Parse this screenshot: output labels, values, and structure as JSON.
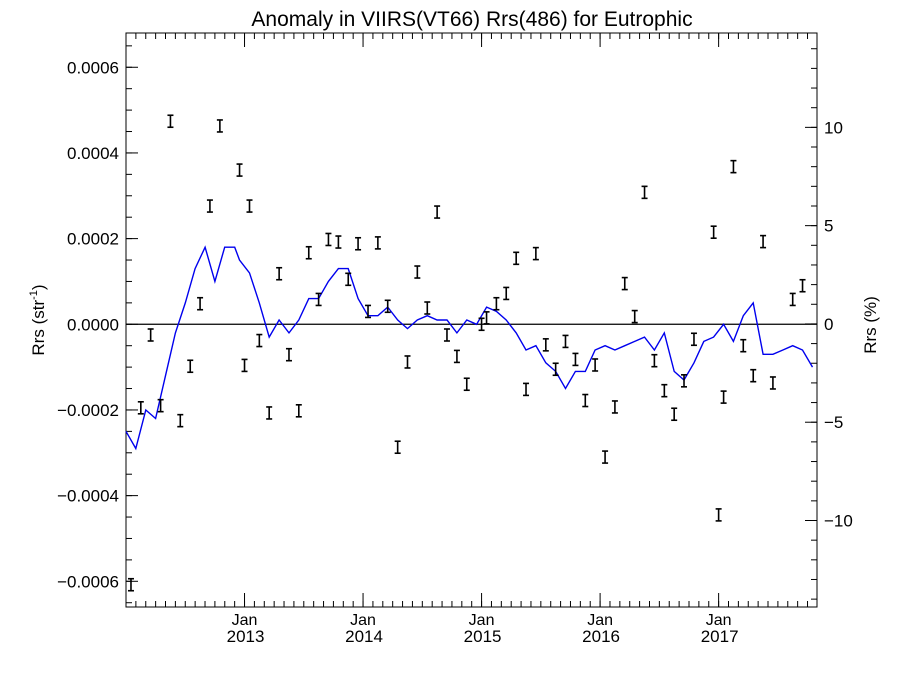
{
  "chart_data": {
    "type": "scatter",
    "title": "Anomaly in VIIRS(VT66) Rrs(486) for Eutrophic",
    "ylabel_left": "Rrs (str",
    "ylabel_left_sup": "-1",
    "ylabel_left_close": ")",
    "ylabel_right": "Rrs (%)",
    "xlim": [
      2012.0,
      2017.83
    ],
    "ylim_left": [
      -0.00066,
      0.00068
    ],
    "ylim_right_percent": [
      -14.4,
      14.8
    ],
    "y_ticks_left": [
      {
        "value": 0.0006,
        "label": "0.0006"
      },
      {
        "value": 0.0004,
        "label": "0.0004"
      },
      {
        "value": 0.0002,
        "label": "0.0002"
      },
      {
        "value": 0.0,
        "label": "0.0000"
      },
      {
        "value": -0.0002,
        "label": "−0.0002"
      },
      {
        "value": -0.0004,
        "label": "−0.0004"
      },
      {
        "value": -0.0006,
        "label": "−0.0006"
      }
    ],
    "y_ticks_right": [
      {
        "value": 10,
        "label": "10"
      },
      {
        "value": 5,
        "label": "5"
      },
      {
        "value": 0,
        "label": "0"
      },
      {
        "value": -5,
        "label": "−5"
      },
      {
        "value": -10,
        "label": "−10"
      }
    ],
    "x_ticks": [
      {
        "value": 2013.0,
        "month": "Jan",
        "year": "2013"
      },
      {
        "value": 2014.0,
        "month": "Jan",
        "year": "2014"
      },
      {
        "value": 2015.0,
        "month": "Jan",
        "year": "2015"
      },
      {
        "value": 2016.0,
        "month": "Jan",
        "year": "2016"
      },
      {
        "value": 2017.0,
        "month": "Jan",
        "year": "2017"
      }
    ],
    "zero_line": true,
    "grid": false,
    "points": [
      {
        "x": 2012.042,
        "y": -0.000608
      },
      {
        "x": 2012.125,
        "y": -0.000195
      },
      {
        "x": 2012.208,
        "y": -2.5e-05
      },
      {
        "x": 2012.292,
        "y": -0.00019
      },
      {
        "x": 2012.375,
        "y": 0.000474
      },
      {
        "x": 2012.458,
        "y": -0.000225
      },
      {
        "x": 2012.542,
        "y": -9.8e-05
      },
      {
        "x": 2012.625,
        "y": 4.8e-05
      },
      {
        "x": 2012.708,
        "y": 0.000276
      },
      {
        "x": 2012.792,
        "y": 0.000463
      },
      {
        "x": 2012.958,
        "y": 0.00036
      },
      {
        "x": 2013.0,
        "y": -9.6e-05
      },
      {
        "x": 2013.042,
        "y": 0.000276
      },
      {
        "x": 2013.125,
        "y": -3.8e-05
      },
      {
        "x": 2013.208,
        "y": -0.000207
      },
      {
        "x": 2013.292,
        "y": 0.000118
      },
      {
        "x": 2013.375,
        "y": -7.1e-05
      },
      {
        "x": 2013.458,
        "y": -0.000202
      },
      {
        "x": 2013.542,
        "y": 0.000167
      },
      {
        "x": 2013.625,
        "y": 5.8e-05
      },
      {
        "x": 2013.708,
        "y": 0.000198
      },
      {
        "x": 2013.792,
        "y": 0.000192
      },
      {
        "x": 2013.875,
        "y": 0.000105
      },
      {
        "x": 2013.958,
        "y": 0.000188
      },
      {
        "x": 2014.042,
        "y": 3e-05
      },
      {
        "x": 2014.125,
        "y": 0.00019
      },
      {
        "x": 2014.208,
        "y": 4.2e-05
      },
      {
        "x": 2014.292,
        "y": -0.000287
      },
      {
        "x": 2014.375,
        "y": -8.8e-05
      },
      {
        "x": 2014.458,
        "y": 0.000122
      },
      {
        "x": 2014.542,
        "y": 3.8e-05
      },
      {
        "x": 2014.625,
        "y": 0.000262
      },
      {
        "x": 2014.708,
        "y": -2.5e-05
      },
      {
        "x": 2014.792,
        "y": -7.5e-05
      },
      {
        "x": 2014.875,
        "y": -0.00014
      },
      {
        "x": 2015.0,
        "y": 0.0
      },
      {
        "x": 2015.042,
        "y": 1.5e-05
      },
      {
        "x": 2015.125,
        "y": 4.8e-05
      },
      {
        "x": 2015.208,
        "y": 7.2e-05
      },
      {
        "x": 2015.292,
        "y": 0.000154
      },
      {
        "x": 2015.375,
        "y": -0.000152
      },
      {
        "x": 2015.458,
        "y": 0.000165
      },
      {
        "x": 2015.542,
        "y": -4.8e-05
      },
      {
        "x": 2015.625,
        "y": -0.000105
      },
      {
        "x": 2015.708,
        "y": -4e-05
      },
      {
        "x": 2015.792,
        "y": -8.2e-05
      },
      {
        "x": 2015.875,
        "y": -0.000178
      },
      {
        "x": 2015.958,
        "y": -9.5e-05
      },
      {
        "x": 2016.042,
        "y": -0.00031
      },
      {
        "x": 2016.125,
        "y": -0.000193
      },
      {
        "x": 2016.208,
        "y": 9.5e-05
      },
      {
        "x": 2016.292,
        "y": 1.8e-05
      },
      {
        "x": 2016.375,
        "y": 0.000308
      },
      {
        "x": 2016.458,
        "y": -8.5e-05
      },
      {
        "x": 2016.542,
        "y": -0.000155
      },
      {
        "x": 2016.625,
        "y": -0.00021
      },
      {
        "x": 2016.708,
        "y": -0.000132
      },
      {
        "x": 2016.792,
        "y": -3.5e-05
      },
      {
        "x": 2016.958,
        "y": 0.000215
      },
      {
        "x": 2017.0,
        "y": -0.000445
      },
      {
        "x": 2017.042,
        "y": -0.00017
      },
      {
        "x": 2017.125,
        "y": 0.000368
      },
      {
        "x": 2017.208,
        "y": -5e-05
      },
      {
        "x": 2017.292,
        "y": -0.00012
      },
      {
        "x": 2017.375,
        "y": 0.000193
      },
      {
        "x": 2017.458,
        "y": -0.000137
      },
      {
        "x": 2017.625,
        "y": 5.8e-05
      },
      {
        "x": 2017.708,
        "y": 9e-05
      }
    ],
    "series": [
      {
        "color": "#0000ee",
        "x": [
          2012.0,
          2012.083,
          2012.167,
          2012.25,
          2012.333,
          2012.417,
          2012.5,
          2012.583,
          2012.667,
          2012.75,
          2012.833,
          2012.917,
          2012.958,
          2013.042,
          2013.125,
          2013.208,
          2013.292,
          2013.375,
          2013.458,
          2013.542,
          2013.625,
          2013.708,
          2013.792,
          2013.875,
          2013.958,
          2014.042,
          2014.125,
          2014.208,
          2014.292,
          2014.375,
          2014.458,
          2014.542,
          2014.625,
          2014.708,
          2014.792,
          2014.875,
          2014.958,
          2015.042,
          2015.125,
          2015.208,
          2015.292,
          2015.375,
          2015.458,
          2015.542,
          2015.625,
          2015.708,
          2015.792,
          2015.875,
          2015.958,
          2016.042,
          2016.125,
          2016.208,
          2016.292,
          2016.375,
          2016.458,
          2016.542,
          2016.625,
          2016.708,
          2016.792,
          2016.875,
          2016.958,
          2017.042,
          2017.125,
          2017.208,
          2017.292,
          2017.375,
          2017.458,
          2017.542,
          2017.625,
          2017.708,
          2017.792
        ],
        "y": [
          -0.00025,
          -0.00029,
          -0.0002,
          -0.00022,
          -0.00012,
          -2e-05,
          5e-05,
          0.00013,
          0.00018,
          0.0001,
          0.00018,
          0.00018,
          0.00015,
          0.00012,
          5e-05,
          -3e-05,
          1e-05,
          -2e-05,
          1e-05,
          6e-05,
          6e-05,
          0.0001,
          0.00013,
          0.00013,
          6e-05,
          2e-05,
          2e-05,
          4e-05,
          1e-05,
          -1e-05,
          1e-05,
          2e-05,
          1e-05,
          1e-05,
          -2e-05,
          1e-05,
          0.0,
          4e-05,
          3e-05,
          1e-05,
          -2e-05,
          -6e-05,
          -5e-05,
          -9e-05,
          -0.00011,
          -0.00015,
          -0.00011,
          -0.00011,
          -6e-05,
          -5e-05,
          -6e-05,
          -5e-05,
          -4e-05,
          -3e-05,
          -6e-05,
          -2e-05,
          -0.00011,
          -0.00013,
          -9e-05,
          -4e-05,
          -3e-05,
          0.0,
          -4e-05,
          2e-05,
          5e-05,
          -7e-05,
          -7e-05,
          -6e-05,
          -5e-05,
          -6e-05,
          -0.0001
        ]
      }
    ]
  }
}
